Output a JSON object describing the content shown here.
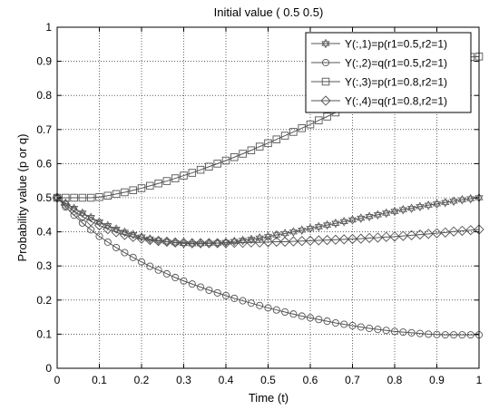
{
  "chart_data": {
    "type": "line",
    "title": "Initial value  ( 0.5  0.5)",
    "xlabel": "Time (t)",
    "ylabel": "Probability value (p or q)",
    "xlim": [
      0,
      1
    ],
    "ylim": [
      0,
      1
    ],
    "xticks": [
      "0",
      "0.1",
      "0.2",
      "0.3",
      "0.4",
      "0.5",
      "0.6",
      "0.7",
      "0.8",
      "0.9",
      "1"
    ],
    "yticks": [
      "0",
      "0.1",
      "0.2",
      "0.3",
      "0.4",
      "0.5",
      "0.6",
      "0.7",
      "0.8",
      "0.9",
      "1"
    ],
    "grid": true,
    "legend_position": "top-right",
    "colors": {
      "line": "#555555",
      "axis": "#000000",
      "grid": "#000000",
      "background": "#ffffff"
    },
    "series": [
      {
        "name": "Y(:,1)=p(r1=0.5,r2=1)",
        "marker": "hexagram",
        "points": [
          [
            0,
            0.5
          ],
          [
            0.02,
            0.484
          ],
          [
            0.04,
            0.469
          ],
          [
            0.06,
            0.455
          ],
          [
            0.08,
            0.442
          ],
          [
            0.1,
            0.429
          ],
          [
            0.12,
            0.418
          ],
          [
            0.14,
            0.408
          ],
          [
            0.16,
            0.399
          ],
          [
            0.18,
            0.392
          ],
          [
            0.2,
            0.385
          ],
          [
            0.22,
            0.379
          ],
          [
            0.24,
            0.375
          ],
          [
            0.26,
            0.371
          ],
          [
            0.28,
            0.368
          ],
          [
            0.3,
            0.366
          ],
          [
            0.32,
            0.365
          ],
          [
            0.34,
            0.365
          ],
          [
            0.36,
            0.366
          ],
          [
            0.38,
            0.367
          ],
          [
            0.4,
            0.369
          ],
          [
            0.42,
            0.372
          ],
          [
            0.44,
            0.375
          ],
          [
            0.46,
            0.378
          ],
          [
            0.48,
            0.382
          ],
          [
            0.5,
            0.386
          ],
          [
            0.52,
            0.391
          ],
          [
            0.54,
            0.395
          ],
          [
            0.56,
            0.4
          ],
          [
            0.58,
            0.405
          ],
          [
            0.6,
            0.41
          ],
          [
            0.62,
            0.415
          ],
          [
            0.64,
            0.42
          ],
          [
            0.66,
            0.425
          ],
          [
            0.68,
            0.43
          ],
          [
            0.7,
            0.435
          ],
          [
            0.72,
            0.44
          ],
          [
            0.74,
            0.445
          ],
          [
            0.76,
            0.45
          ],
          [
            0.78,
            0.455
          ],
          [
            0.8,
            0.46
          ],
          [
            0.82,
            0.465
          ],
          [
            0.84,
            0.469
          ],
          [
            0.86,
            0.474
          ],
          [
            0.88,
            0.478
          ],
          [
            0.9,
            0.482
          ],
          [
            0.92,
            0.486
          ],
          [
            0.94,
            0.49
          ],
          [
            0.96,
            0.494
          ],
          [
            0.98,
            0.497
          ],
          [
            1,
            0.5
          ]
        ]
      },
      {
        "name": "Y(:,2)=q(r1=0.5,r2=1)",
        "marker": "circle",
        "points": [
          [
            0,
            0.5
          ],
          [
            0.02,
            0.473
          ],
          [
            0.04,
            0.449
          ],
          [
            0.06,
            0.426
          ],
          [
            0.08,
            0.406
          ],
          [
            0.1,
            0.387
          ],
          [
            0.12,
            0.37
          ],
          [
            0.14,
            0.354
          ],
          [
            0.16,
            0.339
          ],
          [
            0.18,
            0.325
          ],
          [
            0.2,
            0.312
          ],
          [
            0.22,
            0.299
          ],
          [
            0.24,
            0.288
          ],
          [
            0.26,
            0.277
          ],
          [
            0.28,
            0.266
          ],
          [
            0.3,
            0.256
          ],
          [
            0.32,
            0.247
          ],
          [
            0.34,
            0.238
          ],
          [
            0.36,
            0.229
          ],
          [
            0.38,
            0.221
          ],
          [
            0.4,
            0.213
          ],
          [
            0.42,
            0.205
          ],
          [
            0.44,
            0.198
          ],
          [
            0.46,
            0.191
          ],
          [
            0.48,
            0.184
          ],
          [
            0.5,
            0.177
          ],
          [
            0.52,
            0.171
          ],
          [
            0.54,
            0.165
          ],
          [
            0.56,
            0.159
          ],
          [
            0.58,
            0.153
          ],
          [
            0.6,
            0.148
          ],
          [
            0.62,
            0.143
          ],
          [
            0.64,
            0.138
          ],
          [
            0.66,
            0.133
          ],
          [
            0.68,
            0.129
          ],
          [
            0.7,
            0.125
          ],
          [
            0.72,
            0.121
          ],
          [
            0.74,
            0.117
          ],
          [
            0.76,
            0.114
          ],
          [
            0.78,
            0.111
          ],
          [
            0.8,
            0.108
          ],
          [
            0.82,
            0.106
          ],
          [
            0.84,
            0.104
          ],
          [
            0.86,
            0.102
          ],
          [
            0.88,
            0.1
          ],
          [
            0.9,
            0.099
          ],
          [
            0.92,
            0.098
          ],
          [
            0.94,
            0.098
          ],
          [
            0.96,
            0.098
          ],
          [
            0.98,
            0.098
          ],
          [
            1,
            0.098
          ]
        ]
      },
      {
        "name": "Y(:,3)=p(r1=0.8,r2=1)",
        "marker": "square",
        "points": [
          [
            0,
            0.5
          ],
          [
            0.02,
            0.5
          ],
          [
            0.04,
            0.5
          ],
          [
            0.06,
            0.5
          ],
          [
            0.08,
            0.5
          ],
          [
            0.1,
            0.502
          ],
          [
            0.12,
            0.506
          ],
          [
            0.14,
            0.511
          ],
          [
            0.16,
            0.516
          ],
          [
            0.18,
            0.522
          ],
          [
            0.2,
            0.528
          ],
          [
            0.22,
            0.535
          ],
          [
            0.24,
            0.542
          ],
          [
            0.26,
            0.549
          ],
          [
            0.28,
            0.557
          ],
          [
            0.3,
            0.565
          ],
          [
            0.32,
            0.573
          ],
          [
            0.34,
            0.582
          ],
          [
            0.36,
            0.591
          ],
          [
            0.38,
            0.6
          ],
          [
            0.4,
            0.609
          ],
          [
            0.42,
            0.619
          ],
          [
            0.44,
            0.629
          ],
          [
            0.46,
            0.639
          ],
          [
            0.48,
            0.65
          ],
          [
            0.5,
            0.66
          ],
          [
            0.52,
            0.671
          ],
          [
            0.54,
            0.682
          ],
          [
            0.56,
            0.693
          ],
          [
            0.58,
            0.704
          ],
          [
            0.6,
            0.715
          ],
          [
            0.62,
            0.727
          ],
          [
            0.64,
            0.738
          ],
          [
            0.66,
            0.75
          ],
          [
            0.68,
            0.762
          ],
          [
            0.7,
            0.774
          ],
          [
            0.72,
            0.786
          ],
          [
            0.74,
            0.797
          ],
          [
            0.76,
            0.809
          ],
          [
            0.78,
            0.821
          ],
          [
            0.8,
            0.833
          ],
          [
            0.82,
            0.845
          ],
          [
            0.84,
            0.856
          ],
          [
            0.86,
            0.867
          ],
          [
            0.88,
            0.877
          ],
          [
            0.9,
            0.887
          ],
          [
            0.92,
            0.896
          ],
          [
            0.94,
            0.903
          ],
          [
            0.96,
            0.909
          ],
          [
            0.98,
            0.913
          ],
          [
            1,
            0.914
          ]
        ]
      },
      {
        "name": "Y(:,4)=q(r1=0.8,r2=1)",
        "marker": "diamond",
        "points": [
          [
            0,
            0.5
          ],
          [
            0.02,
            0.479
          ],
          [
            0.04,
            0.461
          ],
          [
            0.06,
            0.445
          ],
          [
            0.08,
            0.431
          ],
          [
            0.1,
            0.419
          ],
          [
            0.12,
            0.408
          ],
          [
            0.14,
            0.399
          ],
          [
            0.16,
            0.391
          ],
          [
            0.18,
            0.385
          ],
          [
            0.2,
            0.38
          ],
          [
            0.22,
            0.376
          ],
          [
            0.24,
            0.373
          ],
          [
            0.26,
            0.371
          ],
          [
            0.28,
            0.369
          ],
          [
            0.3,
            0.368
          ],
          [
            0.32,
            0.367
          ],
          [
            0.34,
            0.367
          ],
          [
            0.36,
            0.367
          ],
          [
            0.38,
            0.367
          ],
          [
            0.4,
            0.367
          ],
          [
            0.42,
            0.368
          ],
          [
            0.44,
            0.368
          ],
          [
            0.46,
            0.369
          ],
          [
            0.48,
            0.369
          ],
          [
            0.5,
            0.37
          ],
          [
            0.52,
            0.371
          ],
          [
            0.54,
            0.371
          ],
          [
            0.56,
            0.372
          ],
          [
            0.58,
            0.373
          ],
          [
            0.6,
            0.374
          ],
          [
            0.62,
            0.375
          ],
          [
            0.64,
            0.376
          ],
          [
            0.66,
            0.377
          ],
          [
            0.68,
            0.378
          ],
          [
            0.7,
            0.379
          ],
          [
            0.72,
            0.38
          ],
          [
            0.74,
            0.382
          ],
          [
            0.76,
            0.383
          ],
          [
            0.78,
            0.385
          ],
          [
            0.8,
            0.386
          ],
          [
            0.82,
            0.388
          ],
          [
            0.84,
            0.39
          ],
          [
            0.86,
            0.392
          ],
          [
            0.88,
            0.394
          ],
          [
            0.9,
            0.396
          ],
          [
            0.92,
            0.398
          ],
          [
            0.94,
            0.401
          ],
          [
            0.96,
            0.403
          ],
          [
            0.98,
            0.405
          ],
          [
            1,
            0.407
          ]
        ]
      }
    ]
  }
}
